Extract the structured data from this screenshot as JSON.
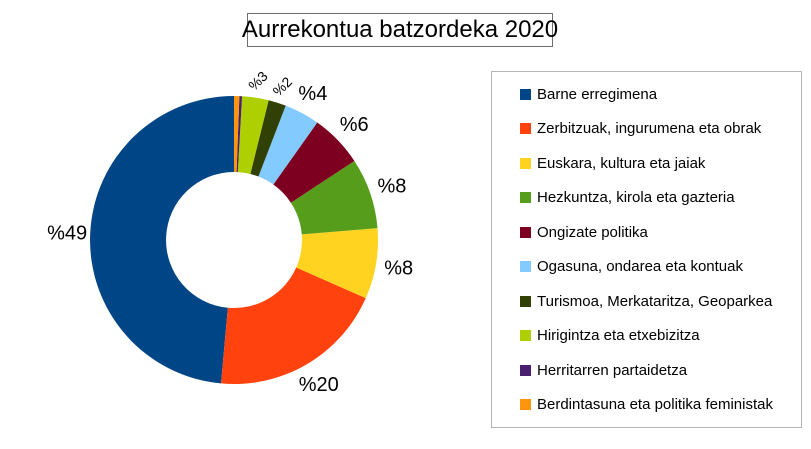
{
  "chart_data": {
    "type": "pie",
    "subtype": "donut",
    "title": "Aurrekontua batzordeka 2020",
    "start_angle_deg": 90,
    "direction": "counterclockwise",
    "legend_position": "right",
    "background_color": "#ffffff",
    "slices": [
      {
        "name": "Barne erregimena",
        "color": "#004586",
        "value": 49,
        "pct_label": "%49",
        "label_rotated": false
      },
      {
        "name": "Zerbitzuak, ingurumena eta obrak",
        "color": "#FF420E",
        "value": 20,
        "pct_label": "%20",
        "label_rotated": false
      },
      {
        "name": "Euskara, kultura eta jaiak",
        "color": "#FFD320",
        "value": 8,
        "pct_label": "%8",
        "label_rotated": false
      },
      {
        "name": "Hezkuntza, kirola eta gazteria",
        "color": "#579D1C",
        "value": 8,
        "pct_label": "%8",
        "label_rotated": false
      },
      {
        "name": "Ongizate politika",
        "color": "#7E0021",
        "value": 6,
        "pct_label": "%6",
        "label_rotated": false
      },
      {
        "name": "Ogasuna, ondarea eta kontuak",
        "color": "#83CAFF",
        "value": 4,
        "pct_label": "%4",
        "label_rotated": false
      },
      {
        "name": "Turismoa, Merkataritza, Geoparkea",
        "color": "#314004",
        "value": 2,
        "pct_label": "%2",
        "label_rotated": true
      },
      {
        "name": "Hirigintza eta etxebizitza",
        "color": "#AECF00",
        "value": 3,
        "pct_label": "%3",
        "label_rotated": true
      },
      {
        "name": "Herritarren partaidetza",
        "color": "#4B1F6F",
        "value": 0.3,
        "pct_label": "",
        "label_rotated": false
      },
      {
        "name": "Berdintasuna eta politika feministak",
        "color": "#FF950E",
        "value": 0.6,
        "pct_label": "",
        "label_rotated": false
      }
    ]
  }
}
